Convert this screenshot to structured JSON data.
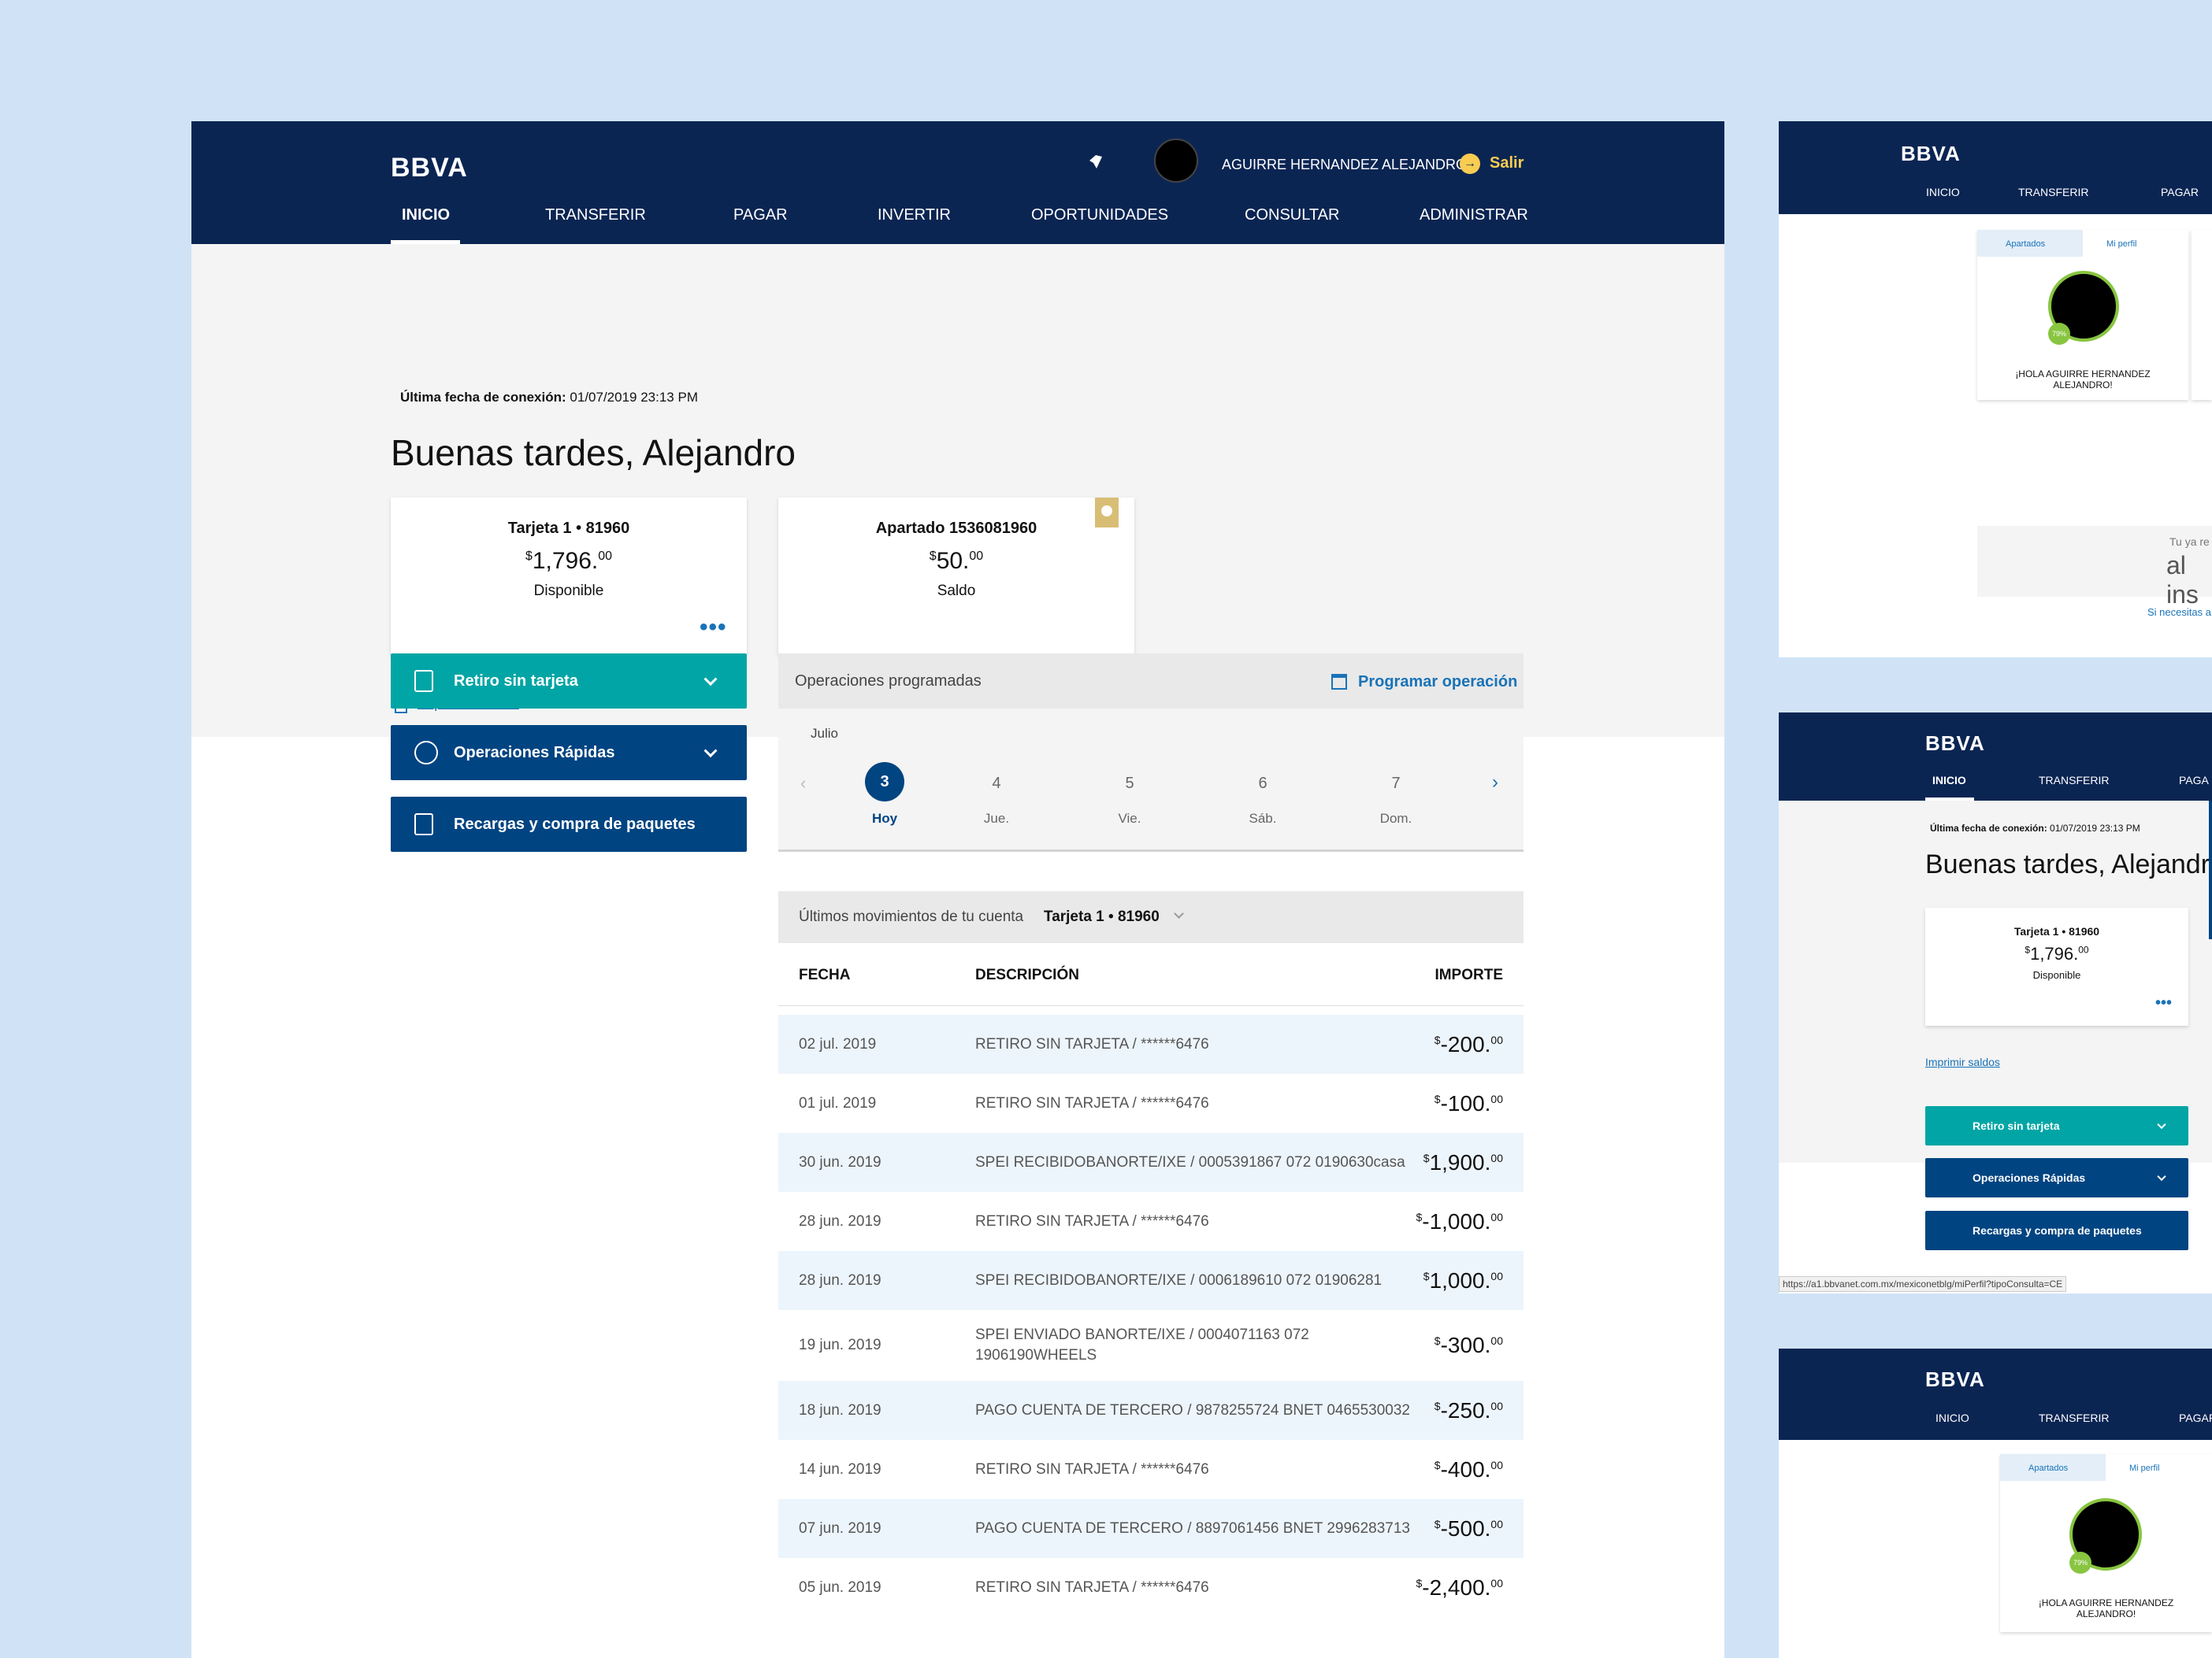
{
  "header": {
    "logo": "BBVA",
    "user_name": "AGUIRRE HERNANDEZ ALEJANDRO",
    "logout_label": "Salir",
    "nav": [
      "INICIO",
      "TRANSFERIR",
      "PAGAR",
      "INVERTIR",
      "OPORTUNIDADES",
      "CONSULTAR",
      "ADMINISTRAR"
    ]
  },
  "summary": {
    "last_connection_label": "Última fecha de conexión:",
    "last_connection_value": "01/07/2019 23:13 PM",
    "greeting": "Buenas tardes, Alejandro",
    "cards": [
      {
        "title": "Tarjeta 1 • 81960",
        "currency": "$",
        "amount": "1,796.",
        "cents": "00",
        "label": "Disponible"
      },
      {
        "title": "Apartado 1536081960",
        "currency": "$",
        "amount": "50.",
        "cents": "00",
        "label": "Saldo"
      }
    ],
    "print_label": "Imprimir saldos"
  },
  "actions": [
    {
      "label": "Retiro sin tarjeta",
      "color": "#02a5a5"
    },
    {
      "label": "Operaciones Rápidas",
      "color": "#004481"
    },
    {
      "label": "Recargas y compra de paquetes",
      "color": "#004481"
    }
  ],
  "scheduled": {
    "title": "Operaciones programadas",
    "action_label": "Programar operación",
    "month": "Julio",
    "days": [
      {
        "num": "3",
        "label": "Hoy"
      },
      {
        "num": "4",
        "label": "Jue."
      },
      {
        "num": "5",
        "label": "Vie."
      },
      {
        "num": "6",
        "label": "Sáb."
      },
      {
        "num": "7",
        "label": "Dom."
      }
    ]
  },
  "movements": {
    "title": "Últimos movimientos de tu cuenta",
    "account": "Tarjeta 1 • 81960",
    "columns": [
      "FECHA",
      "DESCRIPCIÓN",
      "IMPORTE"
    ],
    "rows": [
      {
        "date": "02 jul. 2019",
        "desc": "RETIRO SIN TARJETA / ******6476",
        "cur": "$",
        "amt": "-200.",
        "cents": "00"
      },
      {
        "date": "01 jul. 2019",
        "desc": "RETIRO SIN TARJETA / ******6476",
        "cur": "$",
        "amt": "-100.",
        "cents": "00"
      },
      {
        "date": "30 jun. 2019",
        "desc": "SPEI RECIBIDOBANORTE/IXE / 0005391867 072 0190630casa",
        "cur": "$",
        "amt": "1,900.",
        "cents": "00"
      },
      {
        "date": "28 jun. 2019",
        "desc": "RETIRO SIN TARJETA / ******6476",
        "cur": "$",
        "amt": "-1,000.",
        "cents": "00"
      },
      {
        "date": "28 jun. 2019",
        "desc": "SPEI RECIBIDOBANORTE/IXE / 0006189610 072 01906281",
        "cur": "$",
        "amt": "1,000.",
        "cents": "00"
      },
      {
        "date": "19 jun. 2019",
        "desc": "SPEI ENVIADO BANORTE/IXE / 0004071163 072 1906190WHEELS",
        "cur": "$",
        "amt": "-300.",
        "cents": "00"
      },
      {
        "date": "18 jun. 2019",
        "desc": "PAGO CUENTA DE TERCERO / 9878255724 BNET 0465530032",
        "cur": "$",
        "amt": "-250.",
        "cents": "00"
      },
      {
        "date": "14 jun. 2019",
        "desc": "RETIRO SIN TARJETA / ******6476",
        "cur": "$",
        "amt": "-400.",
        "cents": "00"
      },
      {
        "date": "07 jun. 2019",
        "desc": "PAGO CUENTA DE TERCERO / 8897061456 BNET 2996283713",
        "cur": "$",
        "amt": "-500.",
        "cents": "00"
      },
      {
        "date": "05 jun. 2019",
        "desc": "RETIRO SIN TARJETA / ******6476",
        "cur": "$",
        "amt": "-2,400.",
        "cents": "00"
      }
    ]
  },
  "side1": {
    "logo": "BBVA",
    "nav": [
      "INICIO",
      "TRANSFERIR",
      "PAGAR"
    ],
    "tab1": "Apartados",
    "tab2": "Mi perfil",
    "progress": "79%",
    "hello": "¡HOLA AGUIRRE HERNANDEZ ALEJANDRO!",
    "promo_small": "Tu ya re",
    "promo_big": "al ins",
    "promo_link": "Si necesitas a"
  },
  "side2": {
    "logo": "BBVA",
    "nav": [
      "INICIO",
      "TRANSFERIR",
      "PAGA"
    ],
    "last_connection_label": "Última fecha de conexión:",
    "last_connection_value": "01/07/2019 23:13 PM",
    "greeting": "Buenas tardes, Alejandr",
    "card_title": "Tarjeta 1 • 81960",
    "currency": "$",
    "amount": "1,796.",
    "cents": "00",
    "card_label": "Disponible",
    "print_label": "Imprimir saldos",
    "actions": [
      "Retiro sin tarjeta",
      "Operaciones Rápidas",
      "Recargas y compra de paquetes"
    ],
    "url": "https://a1.bbvanet.com.mx/mexiconetblg/miPerfil?tipoConsulta=CE"
  },
  "side3": {
    "logo": "BBVA",
    "nav": [
      "INICIO",
      "TRANSFERIR",
      "PAGAR"
    ],
    "tab1": "Apartados",
    "tab2": "Mi perfil",
    "progress": "79%",
    "hello": "¡HOLA AGUIRRE HERNANDEZ ALEJANDRO!"
  }
}
